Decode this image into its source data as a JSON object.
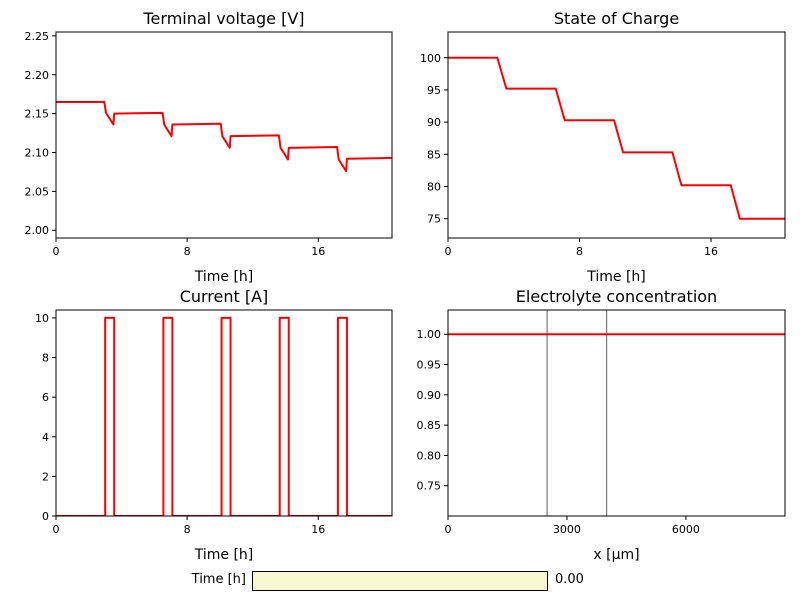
{
  "colors": {
    "line": "#ff0000",
    "separator": "#808080",
    "slider_track": "#f7f7d0"
  },
  "slider": {
    "label": "Time [h]",
    "value_text": "0.00",
    "value": 0
  },
  "chart_data": [
    {
      "type": "line",
      "title": "Terminal voltage [V]",
      "xlabel": "Time [h]",
      "ylabel": "",
      "xlim": [
        0,
        20.5
      ],
      "ylim": [
        1.99,
        2.255
      ],
      "xticks": [
        0,
        8,
        16
      ],
      "yticks": [
        2.0,
        2.05,
        2.1,
        2.15,
        2.2,
        2.25
      ],
      "ytick_labels": [
        "2.00",
        "2.05",
        "2.10",
        "2.15",
        "2.20",
        "2.25"
      ],
      "grid": false,
      "series": [
        {
          "x": [
            0,
            2.95,
            3.05,
            3.5,
            3.55,
            6.5,
            6.6,
            7.05,
            7.1,
            10.05,
            10.15,
            10.6,
            10.65,
            13.6,
            13.7,
            14.15,
            14.2,
            17.15,
            17.25,
            17.7,
            17.75,
            20.5
          ],
          "y": [
            2.165,
            2.165,
            2.151,
            2.136,
            2.15,
            2.151,
            2.136,
            2.121,
            2.136,
            2.137,
            2.121,
            2.106,
            2.121,
            2.122,
            2.106,
            2.091,
            2.106,
            2.107,
            2.091,
            2.076,
            2.092,
            2.093
          ]
        }
      ]
    },
    {
      "type": "line",
      "title": "State of Charge",
      "xlabel": "Time [h]",
      "ylabel": "",
      "xlim": [
        0,
        20.5
      ],
      "ylim": [
        72,
        104
      ],
      "xticks": [
        0,
        8,
        16
      ],
      "yticks": [
        75,
        80,
        85,
        90,
        95,
        100
      ],
      "ytick_labels": [
        "75",
        "80",
        "85",
        "90",
        "95",
        "100"
      ],
      "grid": false,
      "series": [
        {
          "x": [
            0,
            3.0,
            3.55,
            6.55,
            7.1,
            10.1,
            10.65,
            13.65,
            14.2,
            17.2,
            17.75,
            20.5
          ],
          "y": [
            100,
            100,
            95.2,
            95.2,
            90.3,
            90.3,
            85.3,
            85.3,
            80.2,
            80.2,
            75.0,
            75.0
          ]
        }
      ]
    },
    {
      "type": "line",
      "title": "Current [A]",
      "xlabel": "Time [h]",
      "ylabel": "",
      "xlim": [
        0,
        20.5
      ],
      "ylim": [
        0,
        10.4
      ],
      "xticks": [
        0,
        8,
        16
      ],
      "yticks": [
        0,
        2,
        4,
        6,
        8,
        10
      ],
      "ytick_labels": [
        "0",
        "2",
        "4",
        "6",
        "8",
        "10"
      ],
      "grid": false,
      "series": [
        {
          "x": [
            0,
            3.0,
            3.0,
            3.55,
            3.55,
            6.55,
            6.55,
            7.1,
            7.1,
            10.1,
            10.1,
            10.65,
            10.65,
            13.65,
            13.65,
            14.2,
            14.2,
            17.2,
            17.2,
            17.75,
            17.75,
            20.5
          ],
          "y": [
            0,
            0,
            10,
            10,
            0,
            0,
            10,
            10,
            0,
            0,
            10,
            10,
            0,
            0,
            10,
            10,
            0,
            0,
            10,
            10,
            0,
            0
          ]
        }
      ]
    },
    {
      "type": "line",
      "title": "Electrolyte concentration",
      "xlabel": "x [μm]",
      "ylabel": "",
      "xlim": [
        0,
        8500
      ],
      "ylim": [
        0.7,
        1.04
      ],
      "xticks": [
        0,
        3000,
        6000
      ],
      "yticks": [
        0.75,
        0.8,
        0.85,
        0.9,
        0.95,
        1.0
      ],
      "ytick_labels": [
        "0.75",
        "0.80",
        "0.85",
        "0.90",
        "0.95",
        "1.00"
      ],
      "grid": false,
      "vlines": [
        2500,
        4000
      ],
      "series": [
        {
          "x": [
            0,
            8500
          ],
          "y": [
            1.0,
            1.0
          ]
        }
      ]
    }
  ]
}
